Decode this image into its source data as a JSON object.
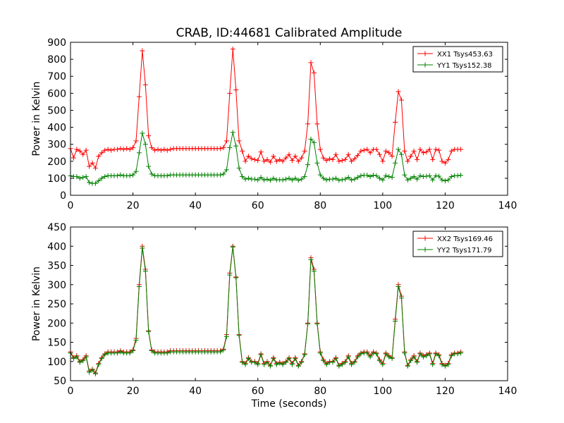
{
  "title": "CRAB, ID:44681 Calibrated Amplitude",
  "colors": {
    "xx": "#ff0000",
    "yy": "#008000"
  },
  "chart_data": [
    {
      "type": "line",
      "xlabel": "",
      "ylabel": "Power in Kelvin",
      "xlim": [
        0,
        140
      ],
      "ylim": [
        0,
        900
      ],
      "xticks": [
        0,
        20,
        40,
        60,
        80,
        100,
        120,
        140
      ],
      "yticks": [
        0,
        100,
        200,
        300,
        400,
        500,
        600,
        700,
        800,
        900
      ],
      "grid": false,
      "legend_position": "top-right",
      "series": [
        {
          "name": "XX1 Tsys453.63",
          "color": "#ff0000",
          "marker": "+",
          "x": [
            0,
            1,
            2,
            3,
            4,
            5,
            6,
            7,
            8,
            9,
            10,
            11,
            12,
            13,
            14,
            15,
            16,
            17,
            18,
            19,
            20,
            21,
            22,
            23,
            24,
            25,
            26,
            27,
            28,
            29,
            30,
            31,
            32,
            33,
            34,
            35,
            36,
            37,
            38,
            39,
            40,
            41,
            42,
            43,
            44,
            45,
            46,
            47,
            48,
            49,
            50,
            51,
            52,
            53,
            54,
            55,
            56,
            57,
            58,
            59,
            60,
            61,
            62,
            63,
            64,
            65,
            66,
            67,
            68,
            69,
            70,
            71,
            72,
            73,
            74,
            75,
            76,
            77,
            78,
            79,
            80,
            81,
            82,
            83,
            84,
            85,
            86,
            87,
            88,
            89,
            90,
            91,
            92,
            93,
            94,
            95,
            96,
            97,
            98,
            99,
            100,
            101,
            102,
            103,
            104,
            105,
            106,
            107,
            108,
            109,
            110,
            111,
            112,
            113,
            114,
            115,
            116,
            117,
            118,
            119,
            120,
            121,
            122,
            123,
            124,
            125
          ],
          "y": [
            275,
            220,
            270,
            260,
            240,
            265,
            170,
            190,
            160,
            230,
            250,
            265,
            270,
            265,
            270,
            270,
            275,
            270,
            275,
            270,
            280,
            320,
            580,
            850,
            650,
            350,
            280,
            265,
            270,
            265,
            270,
            265,
            270,
            275,
            275,
            275,
            275,
            275,
            275,
            275,
            275,
            275,
            275,
            275,
            275,
            275,
            275,
            275,
            275,
            280,
            320,
            600,
            860,
            620,
            320,
            260,
            200,
            230,
            215,
            210,
            205,
            255,
            200,
            210,
            195,
            230,
            200,
            210,
            200,
            220,
            240,
            205,
            230,
            200,
            220,
            260,
            420,
            780,
            720,
            420,
            270,
            220,
            205,
            215,
            210,
            240,
            200,
            205,
            210,
            240,
            200,
            215,
            235,
            260,
            265,
            270,
            250,
            270,
            270,
            240,
            200,
            260,
            250,
            230,
            430,
            610,
            560,
            260,
            200,
            230,
            260,
            210,
            270,
            250,
            255,
            270,
            210,
            270,
            265,
            200,
            190,
            210,
            260,
            270,
            270,
            270
          ]
        },
        {
          "name": "YY1 Tsys152.38",
          "color": "#008000",
          "marker": "+",
          "x": [
            0,
            1,
            2,
            3,
            4,
            5,
            6,
            7,
            8,
            9,
            10,
            11,
            12,
            13,
            14,
            15,
            16,
            17,
            18,
            19,
            20,
            21,
            22,
            23,
            24,
            25,
            26,
            27,
            28,
            29,
            30,
            31,
            32,
            33,
            34,
            35,
            36,
            37,
            38,
            39,
            40,
            41,
            42,
            43,
            44,
            45,
            46,
            47,
            48,
            49,
            50,
            51,
            52,
            53,
            54,
            55,
            56,
            57,
            58,
            59,
            60,
            61,
            62,
            63,
            64,
            65,
            66,
            67,
            68,
            69,
            70,
            71,
            72,
            73,
            74,
            75,
            76,
            77,
            78,
            79,
            80,
            81,
            82,
            83,
            84,
            85,
            86,
            87,
            88,
            89,
            90,
            91,
            92,
            93,
            94,
            95,
            96,
            97,
            98,
            99,
            100,
            101,
            102,
            103,
            104,
            105,
            106,
            107,
            108,
            109,
            110,
            111,
            112,
            113,
            114,
            115,
            116,
            117,
            118,
            119,
            120,
            121,
            122,
            123,
            124,
            125
          ],
          "y": [
            115,
            110,
            110,
            100,
            105,
            110,
            75,
            70,
            70,
            85,
            100,
            110,
            115,
            115,
            115,
            115,
            120,
            115,
            115,
            115,
            120,
            140,
            250,
            365,
            300,
            170,
            125,
            115,
            115,
            115,
            115,
            115,
            120,
            120,
            120,
            120,
            120,
            120,
            120,
            120,
            120,
            120,
            120,
            120,
            120,
            120,
            120,
            120,
            120,
            125,
            150,
            280,
            370,
            290,
            160,
            110,
            95,
            100,
            95,
            95,
            90,
            105,
            90,
            95,
            88,
            100,
            90,
            92,
            90,
            95,
            100,
            90,
            100,
            88,
            95,
            110,
            180,
            330,
            310,
            190,
            120,
            100,
            90,
            95,
            95,
            100,
            88,
            92,
            95,
            105,
            90,
            95,
            105,
            115,
            118,
            118,
            110,
            118,
            115,
            100,
            90,
            115,
            110,
            105,
            190,
            270,
            240,
            120,
            90,
            100,
            110,
            95,
            115,
            110,
            112,
            115,
            90,
            115,
            112,
            90,
            85,
            90,
            110,
            115,
            115,
            118
          ]
        }
      ]
    },
    {
      "type": "line",
      "xlabel": "Time (seconds)",
      "ylabel": "Power in Kelvin",
      "xlim": [
        0,
        140
      ],
      "ylim": [
        50,
        450
      ],
      "xticks": [
        0,
        20,
        40,
        60,
        80,
        100,
        120,
        140
      ],
      "yticks": [
        50,
        100,
        150,
        200,
        250,
        300,
        350,
        400,
        450
      ],
      "grid": false,
      "legend_position": "top-right",
      "series": [
        {
          "name": "XX2 Tsys169.46",
          "color": "#ff0000",
          "marker": "+",
          "x": [
            0,
            1,
            2,
            3,
            4,
            5,
            6,
            7,
            8,
            9,
            10,
            11,
            12,
            13,
            14,
            15,
            16,
            17,
            18,
            19,
            20,
            21,
            22,
            23,
            24,
            25,
            26,
            27,
            28,
            29,
            30,
            31,
            32,
            33,
            34,
            35,
            36,
            37,
            38,
            39,
            40,
            41,
            42,
            43,
            44,
            45,
            46,
            47,
            48,
            49,
            50,
            51,
            52,
            53,
            54,
            55,
            56,
            57,
            58,
            59,
            60,
            61,
            62,
            63,
            64,
            65,
            66,
            67,
            68,
            69,
            70,
            71,
            72,
            73,
            74,
            75,
            76,
            77,
            78,
            79,
            80,
            81,
            82,
            83,
            84,
            85,
            86,
            87,
            88,
            89,
            90,
            91,
            92,
            93,
            94,
            95,
            96,
            97,
            98,
            99,
            100,
            101,
            102,
            103,
            104,
            105,
            106,
            107,
            108,
            109,
            110,
            111,
            112,
            113,
            114,
            115,
            116,
            117,
            118,
            119,
            120,
            121,
            122,
            123,
            124,
            125
          ],
          "y": [
            125,
            110,
            115,
            100,
            105,
            115,
            75,
            80,
            70,
            95,
            110,
            120,
            125,
            125,
            125,
            125,
            128,
            125,
            125,
            125,
            130,
            160,
            300,
            400,
            340,
            180,
            130,
            125,
            125,
            125,
            125,
            125,
            128,
            128,
            128,
            128,
            128,
            128,
            128,
            128,
            128,
            128,
            128,
            128,
            128,
            128,
            128,
            128,
            128,
            132,
            170,
            330,
            400,
            320,
            170,
            100,
            95,
            110,
            100,
            100,
            95,
            120,
            95,
            100,
            90,
            110,
            95,
            98,
            95,
            100,
            110,
            95,
            110,
            90,
            100,
            120,
            200,
            370,
            340,
            200,
            125,
            105,
            95,
            100,
            100,
            110,
            90,
            95,
            100,
            115,
            95,
            100,
            115,
            122,
            125,
            125,
            115,
            125,
            122,
            105,
            95,
            122,
            115,
            110,
            210,
            300,
            270,
            125,
            90,
            105,
            115,
            100,
            122,
            115,
            118,
            122,
            95,
            122,
            118,
            95,
            90,
            95,
            118,
            122,
            122,
            125
          ]
        },
        {
          "name": "YY2 Tsys171.79",
          "color": "#008000",
          "marker": "+",
          "x": [
            0,
            1,
            2,
            3,
            4,
            5,
            6,
            7,
            8,
            9,
            10,
            11,
            12,
            13,
            14,
            15,
            16,
            17,
            18,
            19,
            20,
            21,
            22,
            23,
            24,
            25,
            26,
            27,
            28,
            29,
            30,
            31,
            32,
            33,
            34,
            35,
            36,
            37,
            38,
            39,
            40,
            41,
            42,
            43,
            44,
            45,
            46,
            47,
            48,
            49,
            50,
            51,
            52,
            53,
            54,
            55,
            56,
            57,
            58,
            59,
            60,
            61,
            62,
            63,
            64,
            65,
            66,
            67,
            68,
            69,
            70,
            71,
            72,
            73,
            74,
            75,
            76,
            77,
            78,
            79,
            80,
            81,
            82,
            83,
            84,
            85,
            86,
            87,
            88,
            89,
            90,
            91,
            92,
            93,
            94,
            95,
            96,
            97,
            98,
            99,
            100,
            101,
            102,
            103,
            104,
            105,
            106,
            107,
            108,
            109,
            110,
            111,
            112,
            113,
            114,
            115,
            116,
            117,
            118,
            119,
            120,
            121,
            122,
            123,
            124,
            125
          ],
          "y": [
            122,
            108,
            112,
            98,
            102,
            112,
            72,
            78,
            68,
            92,
            108,
            118,
            122,
            122,
            122,
            122,
            125,
            122,
            122,
            122,
            128,
            155,
            295,
            395,
            335,
            178,
            128,
            122,
            122,
            122,
            122,
            122,
            125,
            125,
            125,
            125,
            125,
            125,
            125,
            125,
            125,
            125,
            125,
            125,
            125,
            125,
            125,
            125,
            125,
            130,
            165,
            325,
            398,
            318,
            168,
            98,
            92,
            108,
            98,
            98,
            92,
            118,
            92,
            98,
            88,
            108,
            92,
            96,
            92,
            98,
            108,
            92,
            108,
            88,
            98,
            118,
            198,
            365,
            335,
            198,
            122,
            102,
            92,
            98,
            98,
            108,
            88,
            92,
            98,
            112,
            92,
            98,
            112,
            120,
            122,
            122,
            112,
            122,
            120,
            102,
            92,
            120,
            112,
            108,
            205,
            295,
            265,
            122,
            88,
            102,
            112,
            98,
            120,
            112,
            115,
            120,
            92,
            120,
            115,
            92,
            88,
            92,
            115,
            120,
            120,
            122
          ]
        }
      ]
    }
  ]
}
